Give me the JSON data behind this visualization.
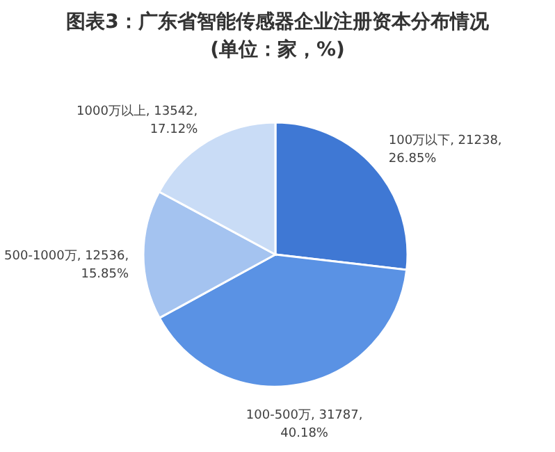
{
  "chart_data": {
    "type": "pie",
    "title": "图表3：广东省智能传感器企业注册资本分布情况",
    "subtitle": "(单位：家，%)",
    "categories": [
      "100万以下",
      "100-500万",
      "500-1000万",
      "1000万以上"
    ],
    "values": [
      21238,
      31787,
      12536,
      13542
    ],
    "value_labels": [
      "21238, 26.85%",
      "31787, 40.18%",
      "12536, 15.85%",
      "13542, 17.12%"
    ],
    "colors": [
      "#3f78d4",
      "#5a92e4",
      "#a4c3f0",
      "#c9dcf6"
    ]
  }
}
